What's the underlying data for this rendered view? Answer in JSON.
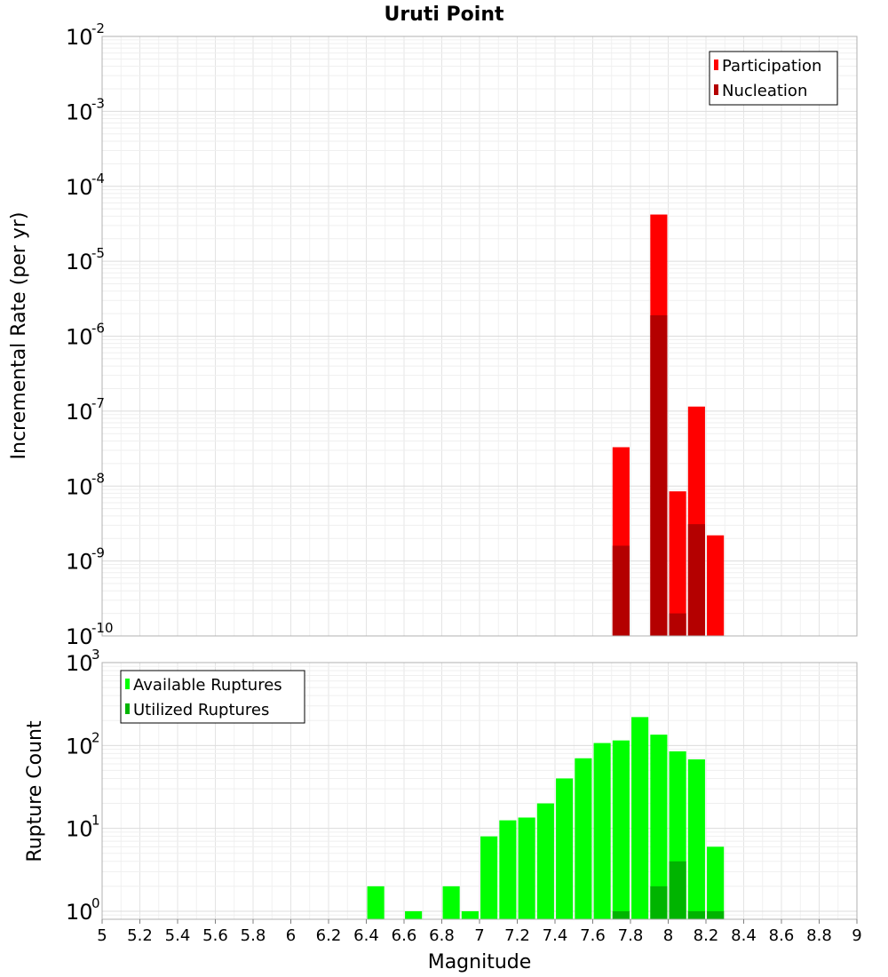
{
  "chart_data": [
    {
      "type": "bar",
      "title": "Uruti Point",
      "xlabel": "",
      "ylabel": "Incremental Rate (per yr)",
      "yscale": "log",
      "xlim": [
        5,
        9
      ],
      "ylim": [
        1e-10,
        0.01
      ],
      "ytick_exponents": [
        -10,
        -9,
        -8,
        -7,
        -6,
        -5,
        -4,
        -3,
        -2
      ],
      "grid": true,
      "legend_position": "top-right",
      "bar_width": 0.09,
      "series": [
        {
          "name": "Participation",
          "color": "#ff0000",
          "x": [
            7.75,
            7.95,
            8.05,
            8.15,
            8.25
          ],
          "values": [
            3.3e-08,
            4.2e-05,
            8.5e-09,
            1.15e-07,
            2.2e-09
          ]
        },
        {
          "name": "Nucleation",
          "color": "#b40000",
          "x": [
            7.75,
            7.95,
            8.05,
            8.15
          ],
          "values": [
            1.6e-09,
            1.9e-06,
            2e-10,
            3.1e-09
          ]
        }
      ]
    },
    {
      "type": "bar",
      "title": "",
      "xlabel": "Magnitude",
      "ylabel": "Rupture Count",
      "yscale": "log",
      "xlim": [
        5,
        9
      ],
      "ylim": [
        0.8,
        1000
      ],
      "ytick_exponents": [
        0,
        1,
        2,
        3
      ],
      "xticks": [
        "5",
        "5.2",
        "5.4",
        "5.6",
        "5.8",
        "6",
        "6.2",
        "6.4",
        "6.6",
        "6.8",
        "7",
        "7.2",
        "7.4",
        "7.6",
        "7.8",
        "8",
        "8.2",
        "8.4",
        "8.6",
        "8.8",
        "9"
      ],
      "grid": true,
      "legend_position": "top-left",
      "bar_width": 0.09,
      "series": [
        {
          "name": "Available Ruptures",
          "color": "#00ff00",
          "x": [
            6.45,
            6.65,
            6.85,
            6.95,
            7.05,
            7.15,
            7.25,
            7.35,
            7.45,
            7.55,
            7.65,
            7.75,
            7.85,
            7.95,
            8.05,
            8.15,
            8.25
          ],
          "values": [
            2,
            1,
            2,
            1,
            8,
            12.5,
            13.5,
            20,
            40,
            70,
            107,
            115,
            220,
            135,
            85,
            68,
            6
          ]
        },
        {
          "name": "Utilized Ruptures",
          "color": "#00b400",
          "x": [
            7.75,
            7.95,
            8.05,
            8.15,
            8.25
          ],
          "values": [
            1,
            2,
            4,
            1,
            1
          ]
        }
      ]
    }
  ]
}
